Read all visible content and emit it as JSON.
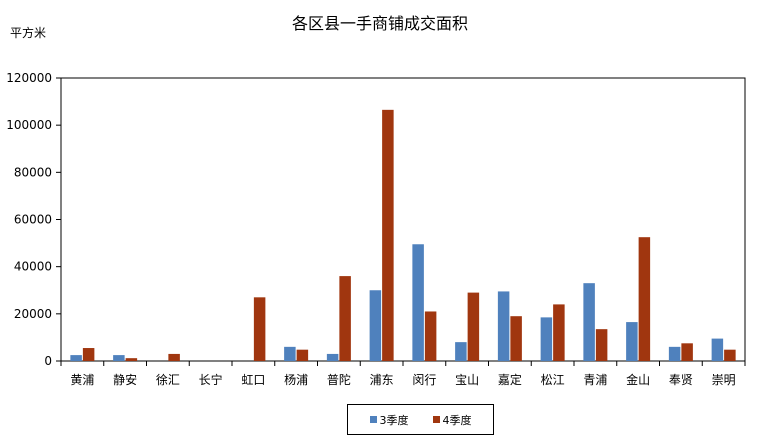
{
  "chart_data": {
    "type": "bar",
    "title": "各区县一手商铺成交面积",
    "ylabel": "平方米",
    "xlabel": "",
    "ylim": [
      0,
      120000
    ],
    "yticks": [
      0,
      20000,
      40000,
      60000,
      80000,
      100000,
      120000
    ],
    "grid": false,
    "legend_position": "bottom",
    "categories": [
      "黄浦",
      "静安",
      "徐汇",
      "长宁",
      "虹口",
      "杨浦",
      "普陀",
      "浦东",
      "闵行",
      "宝山",
      "嘉定",
      "松江",
      "青浦",
      "金山",
      "奉贤",
      "崇明"
    ],
    "series": [
      {
        "name": "3季度",
        "color": "#4f81bd",
        "values": [
          2500,
          2500,
          0,
          0,
          0,
          6000,
          3000,
          30000,
          49500,
          8000,
          29500,
          18500,
          33000,
          16500,
          6000,
          9500
        ]
      },
      {
        "name": "4季度",
        "color": "#a0360f",
        "values": [
          5500,
          1200,
          3000,
          0,
          27000,
          4800,
          36000,
          106500,
          21000,
          29000,
          19000,
          24000,
          13500,
          52500,
          7500,
          4800
        ]
      }
    ]
  }
}
